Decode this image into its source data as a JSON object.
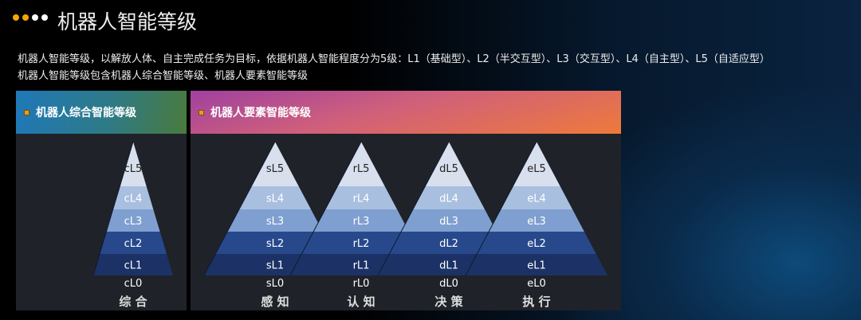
{
  "header": {
    "title": "机器人智能等级",
    "dot_colors": [
      "#f5a800",
      "#f5a800",
      "#ffffff",
      "#ffffff"
    ]
  },
  "description": [
    "机器人智能等级，以解放人体、自主完成任务为目标，依据机器人智能程度分为5级：L1（基础型）、L2（半交互型）、L3（交互型）、L4（自主型）、L5（自适应型）",
    "机器人智能等级包含机器人综合智能等级、机器人要素智能等级"
  ],
  "panels": {
    "left_title": "机器人综合智能等级",
    "right_title": "机器人要素智能等级"
  },
  "band_colors": [
    "#d8e0ee",
    "#a9bfe0",
    "#7f9fd0",
    "#27498c",
    "#1c3266"
  ],
  "pyramids": [
    {
      "levels": [
        "cL5",
        "cL4",
        "cL3",
        "cL2",
        "cL1"
      ],
      "base": "cL0",
      "name": "综 合"
    },
    {
      "levels": [
        "sL5",
        "sL4",
        "sL3",
        "sL2",
        "sL1"
      ],
      "base": "sL0",
      "name": "感 知"
    },
    {
      "levels": [
        "rL5",
        "rL4",
        "rL3",
        "rL2",
        "rL1"
      ],
      "base": "rL0",
      "name": "认 知"
    },
    {
      "levels": [
        "dL5",
        "dL4",
        "dL3",
        "dL2",
        "dL1"
      ],
      "base": "dL0",
      "name": "决 策"
    },
    {
      "levels": [
        "eL5",
        "eL4",
        "eL3",
        "eL2",
        "eL1"
      ],
      "base": "eL0",
      "name": "执 行"
    }
  ]
}
